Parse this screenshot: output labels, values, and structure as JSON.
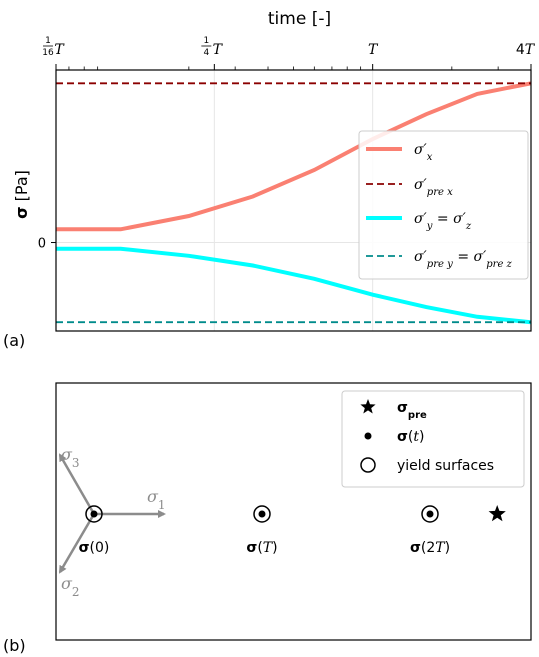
{
  "chart_data": [
    {
      "type": "line",
      "panel_label": "(a)",
      "title": "time [-]",
      "xscale": "log",
      "xlim": [
        0.0625,
        4
      ],
      "xtick_labels": [
        "1/16 T",
        "1/4 T",
        "T",
        "4T"
      ],
      "ylabel": "σ [Pa]",
      "ytick_labels": [
        "0"
      ],
      "ylim": [
        -1.0,
        1.95
      ],
      "grid": true,
      "legend": "center-right",
      "series": [
        {
          "name": "σ′x",
          "color": "#fa8072",
          "style": "solid",
          "x": [
            0.0625,
            0.11,
            0.2,
            0.35,
            0.6,
            1.0,
            1.6,
            2.5,
            4.0
          ],
          "y": [
            0.15,
            0.15,
            0.3,
            0.52,
            0.82,
            1.17,
            1.45,
            1.68,
            1.8
          ]
        },
        {
          "name": "σ′pre x",
          "color": "#8b0000",
          "style": "dashed",
          "x": [
            0.0625,
            4.0
          ],
          "y": [
            1.8,
            1.8
          ]
        },
        {
          "name": "σ′y = σ′z",
          "color": "#00ffff",
          "style": "solid",
          "x": [
            0.0625,
            0.11,
            0.2,
            0.35,
            0.6,
            1.0,
            1.6,
            2.5,
            4.0
          ],
          "y": [
            -0.07,
            -0.07,
            -0.15,
            -0.26,
            -0.41,
            -0.59,
            -0.73,
            -0.84,
            -0.9
          ]
        },
        {
          "name": "σ′pre y = σ′pre z",
          "color": "#008b8b",
          "style": "dashed",
          "x": [
            0.0625,
            4.0
          ],
          "y": [
            -0.9,
            -0.9
          ]
        }
      ]
    },
    {
      "type": "scatter",
      "panel_label": "(b)",
      "axes_labels": [
        "σ1",
        "σ2",
        "σ3"
      ],
      "points": [
        {
          "label": "σ(0)",
          "x": 0,
          "marker": "dot-in-circle"
        },
        {
          "label": "σ(T)",
          "x": 1,
          "marker": "dot-in-circle"
        },
        {
          "label": "σ(2T)",
          "x": 2,
          "marker": "dot-in-circle"
        },
        {
          "label": "",
          "x": 2.4,
          "marker": "star"
        }
      ],
      "legend": "top-right",
      "legend_entries": [
        {
          "label": "σpre",
          "marker": "star"
        },
        {
          "label": "σ(t)",
          "marker": "dot"
        },
        {
          "label": "yield surfaces",
          "marker": "circle"
        }
      ]
    }
  ]
}
